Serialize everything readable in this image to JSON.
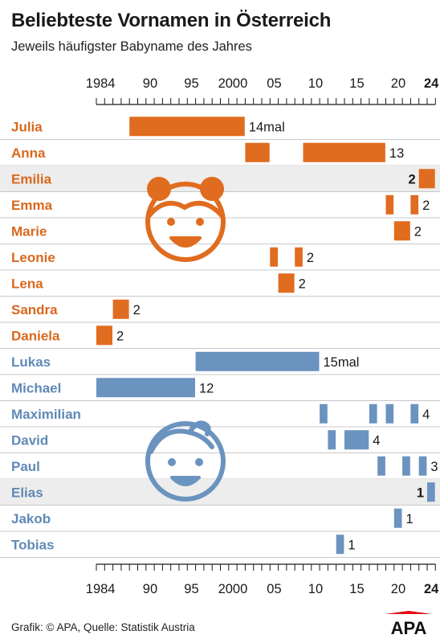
{
  "header": {
    "title": "Beliebteste Vornamen in Österreich",
    "subtitle": "Jeweils häufigster Babyname des Jahres"
  },
  "footer": {
    "source": "Grafik: © APA, Quelle: Statistik Austria",
    "logo_text": "APA"
  },
  "colors": {
    "girls": "#e06c1f",
    "boys": "#6b93bf",
    "label_girls": "#d9681c",
    "label_boys": "#6089b6",
    "highlight_row": "#ededed",
    "separator": "#c8c8c8"
  },
  "icons": {
    "girls": "girl-face-icon",
    "boys": "boy-face-icon"
  },
  "chart_data": {
    "type": "bar",
    "orientation": "horizontal-timeline",
    "xlim": [
      1984,
      2024
    ],
    "x_ticks": [
      {
        "value": 1984,
        "label": "1984"
      },
      {
        "value": 1990,
        "label": "90"
      },
      {
        "value": 1995,
        "label": "95"
      },
      {
        "value": 2000,
        "label": "2000"
      },
      {
        "value": 2005,
        "label": "05"
      },
      {
        "value": 2010,
        "label": "10"
      },
      {
        "value": 2015,
        "label": "15"
      },
      {
        "value": 2020,
        "label": "20"
      },
      {
        "value": 2024,
        "label": "24",
        "bold": true
      }
    ],
    "series": [
      {
        "name": "Julia",
        "group": "girls",
        "count_label": "14mal",
        "segments": [
          [
            1988,
            2001
          ]
        ],
        "highlight": false
      },
      {
        "name": "Anna",
        "group": "girls",
        "count_label": "13",
        "segments": [
          [
            2002,
            2004
          ],
          [
            2009,
            2018
          ]
        ],
        "highlight": false
      },
      {
        "name": "Emilia",
        "group": "girls",
        "count_label": "2",
        "segments": [
          [
            2023,
            2024
          ]
        ],
        "highlight": true
      },
      {
        "name": "Emma",
        "group": "girls",
        "count_label": "2",
        "segments": [
          [
            2019,
            2019
          ],
          [
            2022,
            2022
          ]
        ],
        "highlight": false
      },
      {
        "name": "Marie",
        "group": "girls",
        "count_label": "2",
        "segments": [
          [
            2020,
            2021
          ]
        ],
        "highlight": false
      },
      {
        "name": "Leonie",
        "group": "girls",
        "count_label": "2",
        "segments": [
          [
            2005,
            2005
          ],
          [
            2008,
            2008
          ]
        ],
        "highlight": false
      },
      {
        "name": "Lena",
        "group": "girls",
        "count_label": "2",
        "segments": [
          [
            2006,
            2007
          ]
        ],
        "highlight": false
      },
      {
        "name": "Sandra",
        "group": "girls",
        "count_label": "2",
        "segments": [
          [
            1986,
            1987
          ]
        ],
        "highlight": false
      },
      {
        "name": "Daniela",
        "group": "girls",
        "count_label": "2",
        "segments": [
          [
            1984,
            1985
          ]
        ],
        "highlight": false
      },
      {
        "name": "Lukas",
        "group": "boys",
        "count_label": "15mal",
        "segments": [
          [
            1996,
            2010
          ]
        ],
        "highlight": false
      },
      {
        "name": "Michael",
        "group": "boys",
        "count_label": "12",
        "segments": [
          [
            1984,
            1995
          ]
        ],
        "highlight": false
      },
      {
        "name": "Maximilian",
        "group": "boys",
        "count_label": "4",
        "segments": [
          [
            2011,
            2011
          ],
          [
            2017,
            2017
          ],
          [
            2019,
            2019
          ],
          [
            2022,
            2022
          ]
        ],
        "highlight": false
      },
      {
        "name": "David",
        "group": "boys",
        "count_label": "4",
        "segments": [
          [
            2012,
            2012
          ],
          [
            2014,
            2016
          ]
        ],
        "highlight": false
      },
      {
        "name": "Paul",
        "group": "boys",
        "count_label": "3",
        "segments": [
          [
            2018,
            2018
          ],
          [
            2021,
            2021
          ],
          [
            2023,
            2023
          ]
        ],
        "highlight": false
      },
      {
        "name": "Elias",
        "group": "boys",
        "count_label": "1",
        "segments": [
          [
            2024,
            2024
          ]
        ],
        "highlight": true
      },
      {
        "name": "Jakob",
        "group": "boys",
        "count_label": "1",
        "segments": [
          [
            2020,
            2020
          ]
        ],
        "highlight": false
      },
      {
        "name": "Tobias",
        "group": "boys",
        "count_label": "1",
        "segments": [
          [
            2013,
            2013
          ]
        ],
        "highlight": false
      }
    ]
  }
}
